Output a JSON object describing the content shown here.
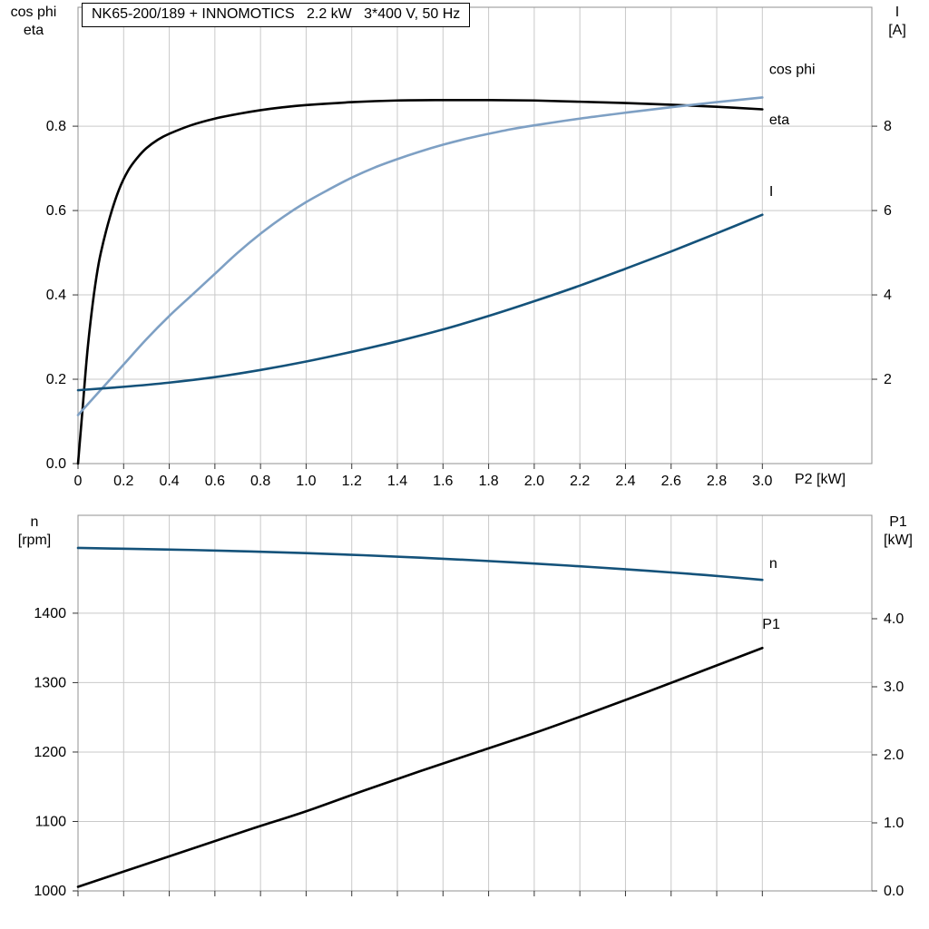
{
  "axis_corner_labels": {
    "top_left": [
      "cos phi",
      "eta"
    ],
    "top_right": [
      "I",
      "[A]"
    ],
    "bottom_left": [
      "n",
      "[rpm]"
    ],
    "bottom_right": [
      "P1",
      "[kW]"
    ]
  },
  "colors": {
    "curve_black": "#000000",
    "curve_light_blue": "#7EA0C4",
    "curve_dark_blue": "#14527A",
    "grid": "#c9c9c9",
    "frame": "#909090",
    "tick": "#333333",
    "text": "#000000"
  },
  "chart_data": [
    {
      "id": "top_chart",
      "type": "line",
      "title": "NK65-200/189 + INNOMOTICS   2.2 kW   3*400 V, 50 Hz",
      "xlabel": "P2 [kW]",
      "xlim": [
        0,
        3.48
      ],
      "xticks": {
        "values": [
          0,
          0.2,
          0.4,
          0.6,
          0.8,
          1.0,
          1.2,
          1.4,
          1.6,
          1.8,
          2.0,
          2.2,
          2.4,
          2.6,
          2.8,
          3.0
        ],
        "labels": [
          "0",
          "0.2",
          "0.4",
          "0.6",
          "0.8",
          "1.0",
          "1.2",
          "1.4",
          "1.6",
          "1.8",
          "2.0",
          "2.2",
          "2.4",
          "2.6",
          "2.8",
          "3.0"
        ],
        "show_labels": true
      },
      "left": {
        "label": "cos phi / eta",
        "lim": [
          0,
          1.082
        ],
        "ticks": [
          0,
          0.2,
          0.4,
          0.6,
          0.8
        ],
        "labels": [
          "0.0",
          "0.2",
          "0.4",
          "0.6",
          "0.8"
        ]
      },
      "right": {
        "label": "I [A]",
        "lim": [
          0,
          10.82
        ],
        "ticks": [
          2,
          4,
          6,
          8
        ],
        "labels": [
          "2",
          "4",
          "6",
          "8"
        ]
      },
      "series": [
        {
          "name": "eta",
          "axis": "left",
          "color": "#000000",
          "label": {
            "x": 3.03,
            "y": 0.815
          },
          "x": [
            0,
            0.02,
            0.04,
            0.06,
            0.08,
            0.1,
            0.14,
            0.18,
            0.22,
            0.26,
            0.3,
            0.35,
            0.4,
            0.5,
            0.6,
            0.7,
            0.8,
            0.9,
            1.0,
            1.2,
            1.4,
            1.6,
            1.8,
            2.0,
            2.2,
            2.4,
            2.6,
            2.8,
            3.0
          ],
          "y": [
            0,
            0.13,
            0.26,
            0.36,
            0.44,
            0.5,
            0.585,
            0.65,
            0.695,
            0.725,
            0.748,
            0.768,
            0.782,
            0.803,
            0.818,
            0.829,
            0.838,
            0.845,
            0.85,
            0.857,
            0.861,
            0.862,
            0.862,
            0.861,
            0.858,
            0.855,
            0.851,
            0.846,
            0.84
          ]
        },
        {
          "name": "cos phi",
          "axis": "left",
          "color": "#7EA0C4",
          "label": {
            "x": 3.03,
            "y": 0.935
          },
          "x": [
            0,
            0.1,
            0.2,
            0.3,
            0.4,
            0.5,
            0.6,
            0.7,
            0.8,
            0.9,
            1.0,
            1.1,
            1.2,
            1.3,
            1.4,
            1.5,
            1.6,
            1.7,
            1.8,
            1.9,
            2.0,
            2.2,
            2.4,
            2.6,
            2.8,
            3.0
          ],
          "y": [
            0.115,
            0.175,
            0.235,
            0.295,
            0.35,
            0.4,
            0.45,
            0.5,
            0.545,
            0.585,
            0.62,
            0.65,
            0.678,
            0.702,
            0.722,
            0.74,
            0.756,
            0.77,
            0.782,
            0.793,
            0.802,
            0.818,
            0.832,
            0.845,
            0.857,
            0.868
          ]
        },
        {
          "name": "I",
          "axis": "right",
          "color": "#14527A",
          "label": {
            "x": 3.03,
            "y": 6.45
          },
          "x": [
            0,
            0.2,
            0.4,
            0.6,
            0.8,
            1.0,
            1.2,
            1.4,
            1.6,
            1.8,
            2.0,
            2.2,
            2.4,
            2.6,
            2.8,
            3.0
          ],
          "y": [
            1.74,
            1.82,
            1.92,
            2.05,
            2.22,
            2.42,
            2.65,
            2.9,
            3.18,
            3.5,
            3.85,
            4.22,
            4.62,
            5.03,
            5.46,
            5.9
          ]
        }
      ]
    },
    {
      "id": "bottom_chart",
      "type": "line",
      "title": "",
      "xlabel": "",
      "xlim": [
        0,
        3.48
      ],
      "xticks": {
        "values": [
          0,
          0.2,
          0.4,
          0.6,
          0.8,
          1.0,
          1.2,
          1.4,
          1.6,
          1.8,
          2.0,
          2.2,
          2.4,
          2.6,
          2.8,
          3.0
        ],
        "labels": [],
        "show_labels": false
      },
      "left": {
        "label": "n [rpm]",
        "lim": [
          1000,
          1541
        ],
        "ticks": [
          1000,
          1100,
          1200,
          1300,
          1400
        ],
        "labels": [
          "1000",
          "1100",
          "1200",
          "1300",
          "1400"
        ]
      },
      "right": {
        "label": "P1 [kW]",
        "lim": [
          0,
          5.52
        ],
        "ticks": [
          0,
          1,
          2,
          3,
          4
        ],
        "labels": [
          "0.0",
          "1.0",
          "2.0",
          "3.0",
          "4.0"
        ]
      },
      "series": [
        {
          "name": "n",
          "axis": "left",
          "color": "#14527A",
          "label": {
            "x": 3.03,
            "y": 1472
          },
          "x": [
            0,
            0.25,
            0.5,
            0.75,
            1.0,
            1.25,
            1.5,
            1.75,
            2.0,
            2.25,
            2.5,
            2.75,
            3.0
          ],
          "y": [
            1494,
            1492.5,
            1491,
            1489,
            1486.5,
            1483.5,
            1480,
            1476,
            1471.5,
            1466.5,
            1461,
            1455,
            1448
          ]
        },
        {
          "name": "P1",
          "axis": "right",
          "color": "#000000",
          "label": {
            "x": 3.0,
            "y": 3.92
          },
          "x": [
            0,
            0.25,
            0.5,
            0.75,
            1.0,
            1.25,
            1.5,
            1.75,
            2.0,
            2.25,
            2.5,
            2.75,
            3.0
          ],
          "y": [
            0.06,
            0.34,
            0.62,
            0.9,
            1.17,
            1.47,
            1.76,
            2.04,
            2.32,
            2.62,
            2.93,
            3.25,
            3.57
          ]
        }
      ]
    }
  ]
}
